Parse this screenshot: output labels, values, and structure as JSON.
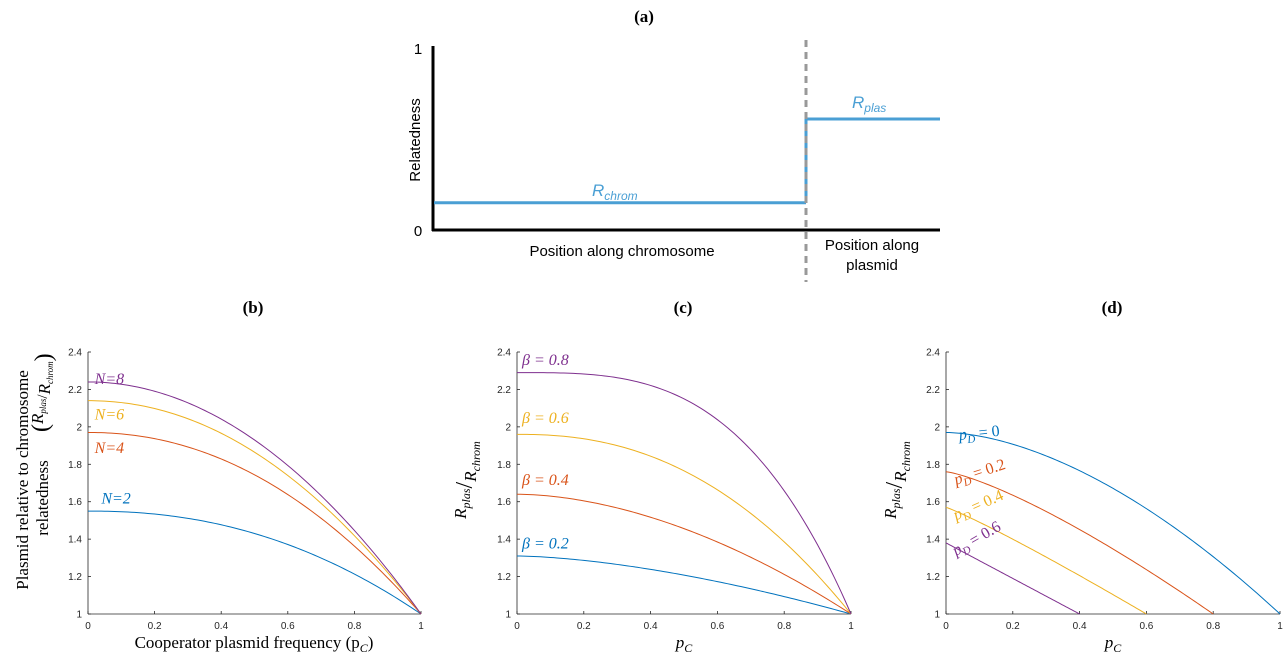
{
  "colors": {
    "blue": "#0072BD",
    "orange": "#D95319",
    "yellow": "#EDB120",
    "purple": "#7E2F8E",
    "schematic_blue": "#4A9FD4",
    "axis": "#262626",
    "dashed": "#999999"
  },
  "chart_data": [
    {
      "panel": "a",
      "type": "line",
      "title": "(a)",
      "ylabel": "Relatedness",
      "yticks": [
        "1",
        "0"
      ],
      "region_labels": {
        "chromosome": "Position along chromosome",
        "plasmid_line1": "Position along",
        "plasmid_line2": "plasmid"
      },
      "series_labels": {
        "chrom": "R",
        "chrom_sub": "chrom",
        "plas": "R",
        "plas_sub": "plas"
      },
      "levels": {
        "chrom": 0.15,
        "plas": 0.61
      },
      "ylim": [
        0,
        1
      ]
    },
    {
      "panel": "b",
      "type": "line",
      "title": "(b)",
      "xlabel": "Cooperator plasmid frequency (p",
      "xlabel_sub": "C",
      "xlabel_end": ")",
      "ylabel_line1": "Plasmid relative to chromosome",
      "ylabel_line2": "relatedness",
      "ylabel_frac_num": "R",
      "ylabel_frac_num_sub": "plas",
      "ylabel_frac_den": "R",
      "ylabel_frac_den_sub": "chrom",
      "xlim": [
        0,
        1
      ],
      "ylim": [
        1,
        2.4
      ],
      "xticks": [
        0,
        0.2,
        0.4,
        0.6,
        0.8,
        1
      ],
      "yticks": [
        1,
        1.2,
        1.4,
        1.6,
        1.8,
        2,
        2.2,
        2.4
      ],
      "series": [
        {
          "name": "N=2",
          "color": "blue",
          "start": 1.55,
          "exponent": 2.2,
          "label_x": 0.04,
          "label_y": 1.59
        },
        {
          "name": "N=4",
          "color": "orange",
          "start": 1.97,
          "exponent": 2.1,
          "label_x": 0.02,
          "label_y": 1.86
        },
        {
          "name": "N=6",
          "color": "yellow",
          "start": 2.14,
          "exponent": 2.05,
          "label_x": 0.02,
          "label_y": 2.04
        },
        {
          "name": "N=8",
          "color": "purple",
          "start": 2.24,
          "exponent": 2.0,
          "label_x": 0.02,
          "label_y": 2.23
        }
      ]
    },
    {
      "panel": "c",
      "type": "line",
      "title": "(c)",
      "xlabel": "p",
      "xlabel_sub": "C",
      "ylabel_num": "R",
      "ylabel_num_sub": "plas",
      "ylabel_den": "R",
      "ylabel_den_sub": "chrom",
      "xlim": [
        0,
        1
      ],
      "ylim": [
        1,
        2.4
      ],
      "xticks": [
        0,
        0.2,
        0.4,
        0.6,
        0.8,
        1
      ],
      "yticks": [
        1,
        1.2,
        1.4,
        1.6,
        1.8,
        2,
        2.2,
        2.4
      ],
      "series": [
        {
          "name": "β = 0.2",
          "color": "blue",
          "start": 1.31,
          "exponent": 1.6,
          "label_x": 0.015,
          "label_y": 1.35
        },
        {
          "name": "β = 0.4",
          "color": "orange",
          "start": 1.64,
          "exponent": 1.8,
          "label_x": 0.015,
          "label_y": 1.69
        },
        {
          "name": "β = 0.6",
          "color": "yellow",
          "start": 1.96,
          "exponent": 2.3,
          "label_x": 0.015,
          "label_y": 2.02
        },
        {
          "name": "β = 0.8",
          "color": "purple",
          "start": 2.29,
          "exponent": 3.2,
          "label_x": 0.015,
          "label_y": 2.33
        }
      ]
    },
    {
      "panel": "d",
      "type": "line",
      "title": "(d)",
      "xlabel": "p",
      "xlabel_sub": "C",
      "ylabel_num": "R",
      "ylabel_num_sub": "plas",
      "ylabel_den": "R",
      "ylabel_den_sub": "chrom",
      "xlim": [
        0,
        1
      ],
      "ylim": [
        1,
        2.4
      ],
      "xticks": [
        0,
        0.2,
        0.4,
        0.6,
        0.8,
        1
      ],
      "yticks": [
        1,
        1.2,
        1.4,
        1.6,
        1.8,
        2,
        2.2,
        2.4
      ],
      "series": [
        {
          "name_main": "p",
          "name_sub": "D",
          "name_rest": " = 0",
          "color": "blue",
          "start": 1.97,
          "end_x": 1.0,
          "exponent": 1.7,
          "label_x": 0.04,
          "label_y": 1.93,
          "label_rot": -6
        },
        {
          "name_main": "p",
          "name_sub": "D",
          "name_rest": " = 0.2",
          "color": "orange",
          "start": 1.76,
          "end_x": 0.8,
          "exponent": 1.3,
          "label_x": 0.03,
          "label_y": 1.69,
          "label_rot": -18
        },
        {
          "name_main": "p",
          "name_sub": "D",
          "name_rest": " = 0.4",
          "color": "yellow",
          "start": 1.57,
          "end_x": 0.6,
          "exponent": 1.1,
          "label_x": 0.03,
          "label_y": 1.5,
          "label_rot": -24
        },
        {
          "name_main": "p",
          "name_sub": "D",
          "name_rest": " = 0.6",
          "color": "purple",
          "start": 1.38,
          "end_x": 0.4,
          "exponent": 1.0,
          "label_x": 0.03,
          "label_y": 1.31,
          "label_rot": -30
        }
      ]
    }
  ]
}
